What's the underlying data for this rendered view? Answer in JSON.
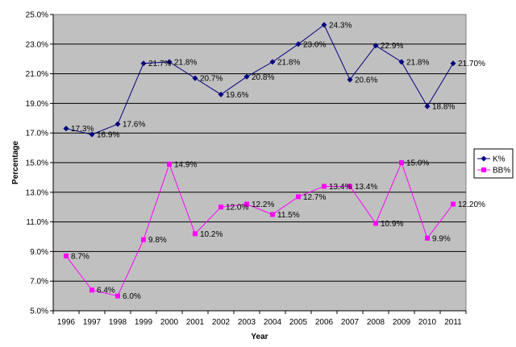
{
  "chart_data": {
    "type": "line",
    "xlabel": "Year",
    "ylabel": "Percentage",
    "ylim": [
      5.0,
      25.0
    ],
    "y_ticks": [
      "5.0%",
      "7.0%",
      "9.0%",
      "11.0%",
      "13.0%",
      "15.0%",
      "17.0%",
      "19.0%",
      "21.0%",
      "23.0%",
      "25.0%"
    ],
    "grid": "horizontal",
    "legend_position": "right",
    "plot_background": "#c0c0c0",
    "categories": [
      "1996",
      "1997",
      "1998",
      "1999",
      "2000",
      "2001",
      "2002",
      "2003",
      "2004",
      "2005",
      "2006",
      "2007",
      "2008",
      "2009",
      "2010",
      "2011"
    ],
    "series": [
      {
        "name": "K%",
        "color": "#000080",
        "marker": "diamond",
        "values": [
          17.3,
          16.9,
          17.6,
          21.7,
          21.8,
          20.7,
          19.6,
          20.8,
          21.8,
          23.0,
          24.3,
          20.6,
          22.9,
          21.8,
          18.8,
          21.7
        ],
        "labels": [
          "17.3%",
          "16.9%",
          "17.6%",
          "21.7%",
          "21.8%",
          "20.7%",
          "19.6%",
          "20.8%",
          "21.8%",
          "23.0%",
          "24.3%",
          "20.6%",
          "22.9%",
          "21.8%",
          "18.8%",
          "21.70%"
        ]
      },
      {
        "name": "BB%",
        "color": "#ff00ff",
        "marker": "square",
        "values": [
          8.7,
          6.4,
          6.0,
          9.8,
          14.9,
          10.2,
          12.0,
          12.2,
          11.5,
          12.7,
          13.4,
          13.4,
          10.9,
          15.0,
          9.9,
          12.2
        ],
        "labels": [
          "8.7%",
          "6.4%",
          "6.0%",
          "9.8%",
          "14.9%",
          "10.2%",
          "12.0%",
          "12.2%",
          "11.5%",
          "12.7%",
          "13.4%",
          "13.4%",
          "10.9%",
          "15.0%",
          "9.9%",
          "12.20%"
        ]
      }
    ]
  }
}
